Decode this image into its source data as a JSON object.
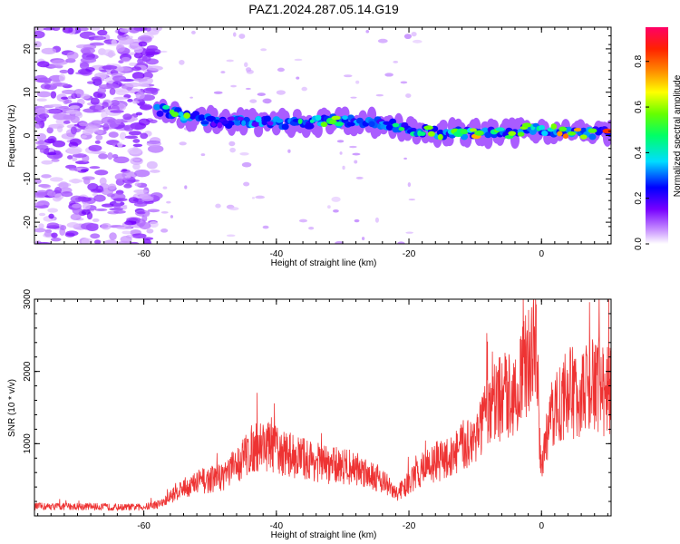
{
  "figure": {
    "title": "PAZ1.2024.287.05.14.G19"
  },
  "chart_data": [
    {
      "type": "heatmap",
      "name": "spectrogram",
      "xlabel": "Height of straight line (km)",
      "ylabel": "Frequency (Hz)",
      "xlim": [
        -76.5,
        10.5
      ],
      "ylim": [
        -25,
        25
      ],
      "xticks": [
        -60,
        -40,
        -20,
        0
      ],
      "yticks": [
        -20,
        -10,
        0,
        10,
        20
      ],
      "grid": false,
      "colorbar": {
        "label": "Normalized spectral amplitude",
        "range": [
          0,
          0.95
        ],
        "ticks": [
          "0.0",
          "0.2",
          "0.4",
          "0.6",
          "0.8"
        ],
        "tick_values": [
          0,
          0.2,
          0.4,
          0.6,
          0.8
        ],
        "colors": [
          "#ffffff",
          "#cc99ff",
          "#7700ff",
          "#0000ff",
          "#00ddff",
          "#00ff66",
          "#66ff00",
          "#ffff00",
          "#ff8800",
          "#ff2200",
          "#ff0066"
        ]
      },
      "ridge": {
        "description_x": [
          -57,
          -54,
          -50,
          -45,
          -40,
          -35,
          -30,
          -25,
          -20,
          -15,
          -10,
          -5,
          -2,
          0,
          5,
          10
        ],
        "freq": [
          6,
          4.5,
          3.5,
          3,
          3,
          3,
          3.5,
          3,
          1.5,
          0.5,
          0.5,
          0.5,
          1.5,
          1.5,
          0.5,
          0.5
        ],
        "amplitude": [
          0.5,
          0.7,
          0.3,
          0.35,
          0.4,
          0.5,
          0.6,
          0.45,
          0.55,
          0.8,
          0.75,
          0.6,
          0.7,
          0.5,
          0.9,
          0.85
        ]
      }
    },
    {
      "type": "line",
      "name": "snr",
      "xlabel": "Height of straight line (km)",
      "ylabel": "SNR (10 * v/v)",
      "xlim": [
        -76.5,
        10.5
      ],
      "ylim": [
        0,
        3000
      ],
      "xticks": [
        -60,
        -40,
        -20,
        0
      ],
      "yticks": [
        1000,
        2000,
        3000
      ],
      "grid": false,
      "color": "#ee3333",
      "series": [
        {
          "x": [
            -76,
            -72,
            -68,
            -64,
            -60,
            -57,
            -55,
            -52,
            -50,
            -48,
            -46,
            -44,
            -42,
            -40,
            -38,
            -36,
            -34,
            -32,
            -30,
            -28,
            -26,
            -24,
            -22,
            -20,
            -18,
            -16,
            -14,
            -12,
            -10,
            -8,
            -6,
            -4,
            -2,
            -1,
            0,
            1,
            2,
            4,
            6,
            8,
            10
          ],
          "y": [
            130,
            130,
            130,
            120,
            120,
            180,
            350,
            450,
            500,
            550,
            700,
            900,
            1000,
            900,
            850,
            800,
            750,
            700,
            700,
            650,
            600,
            500,
            300,
            450,
            650,
            750,
            800,
            950,
            1100,
            1400,
            1650,
            1700,
            2100,
            2700,
            600,
            1200,
            1500,
            1700,
            1700,
            1800,
            1750
          ]
        }
      ]
    }
  ]
}
